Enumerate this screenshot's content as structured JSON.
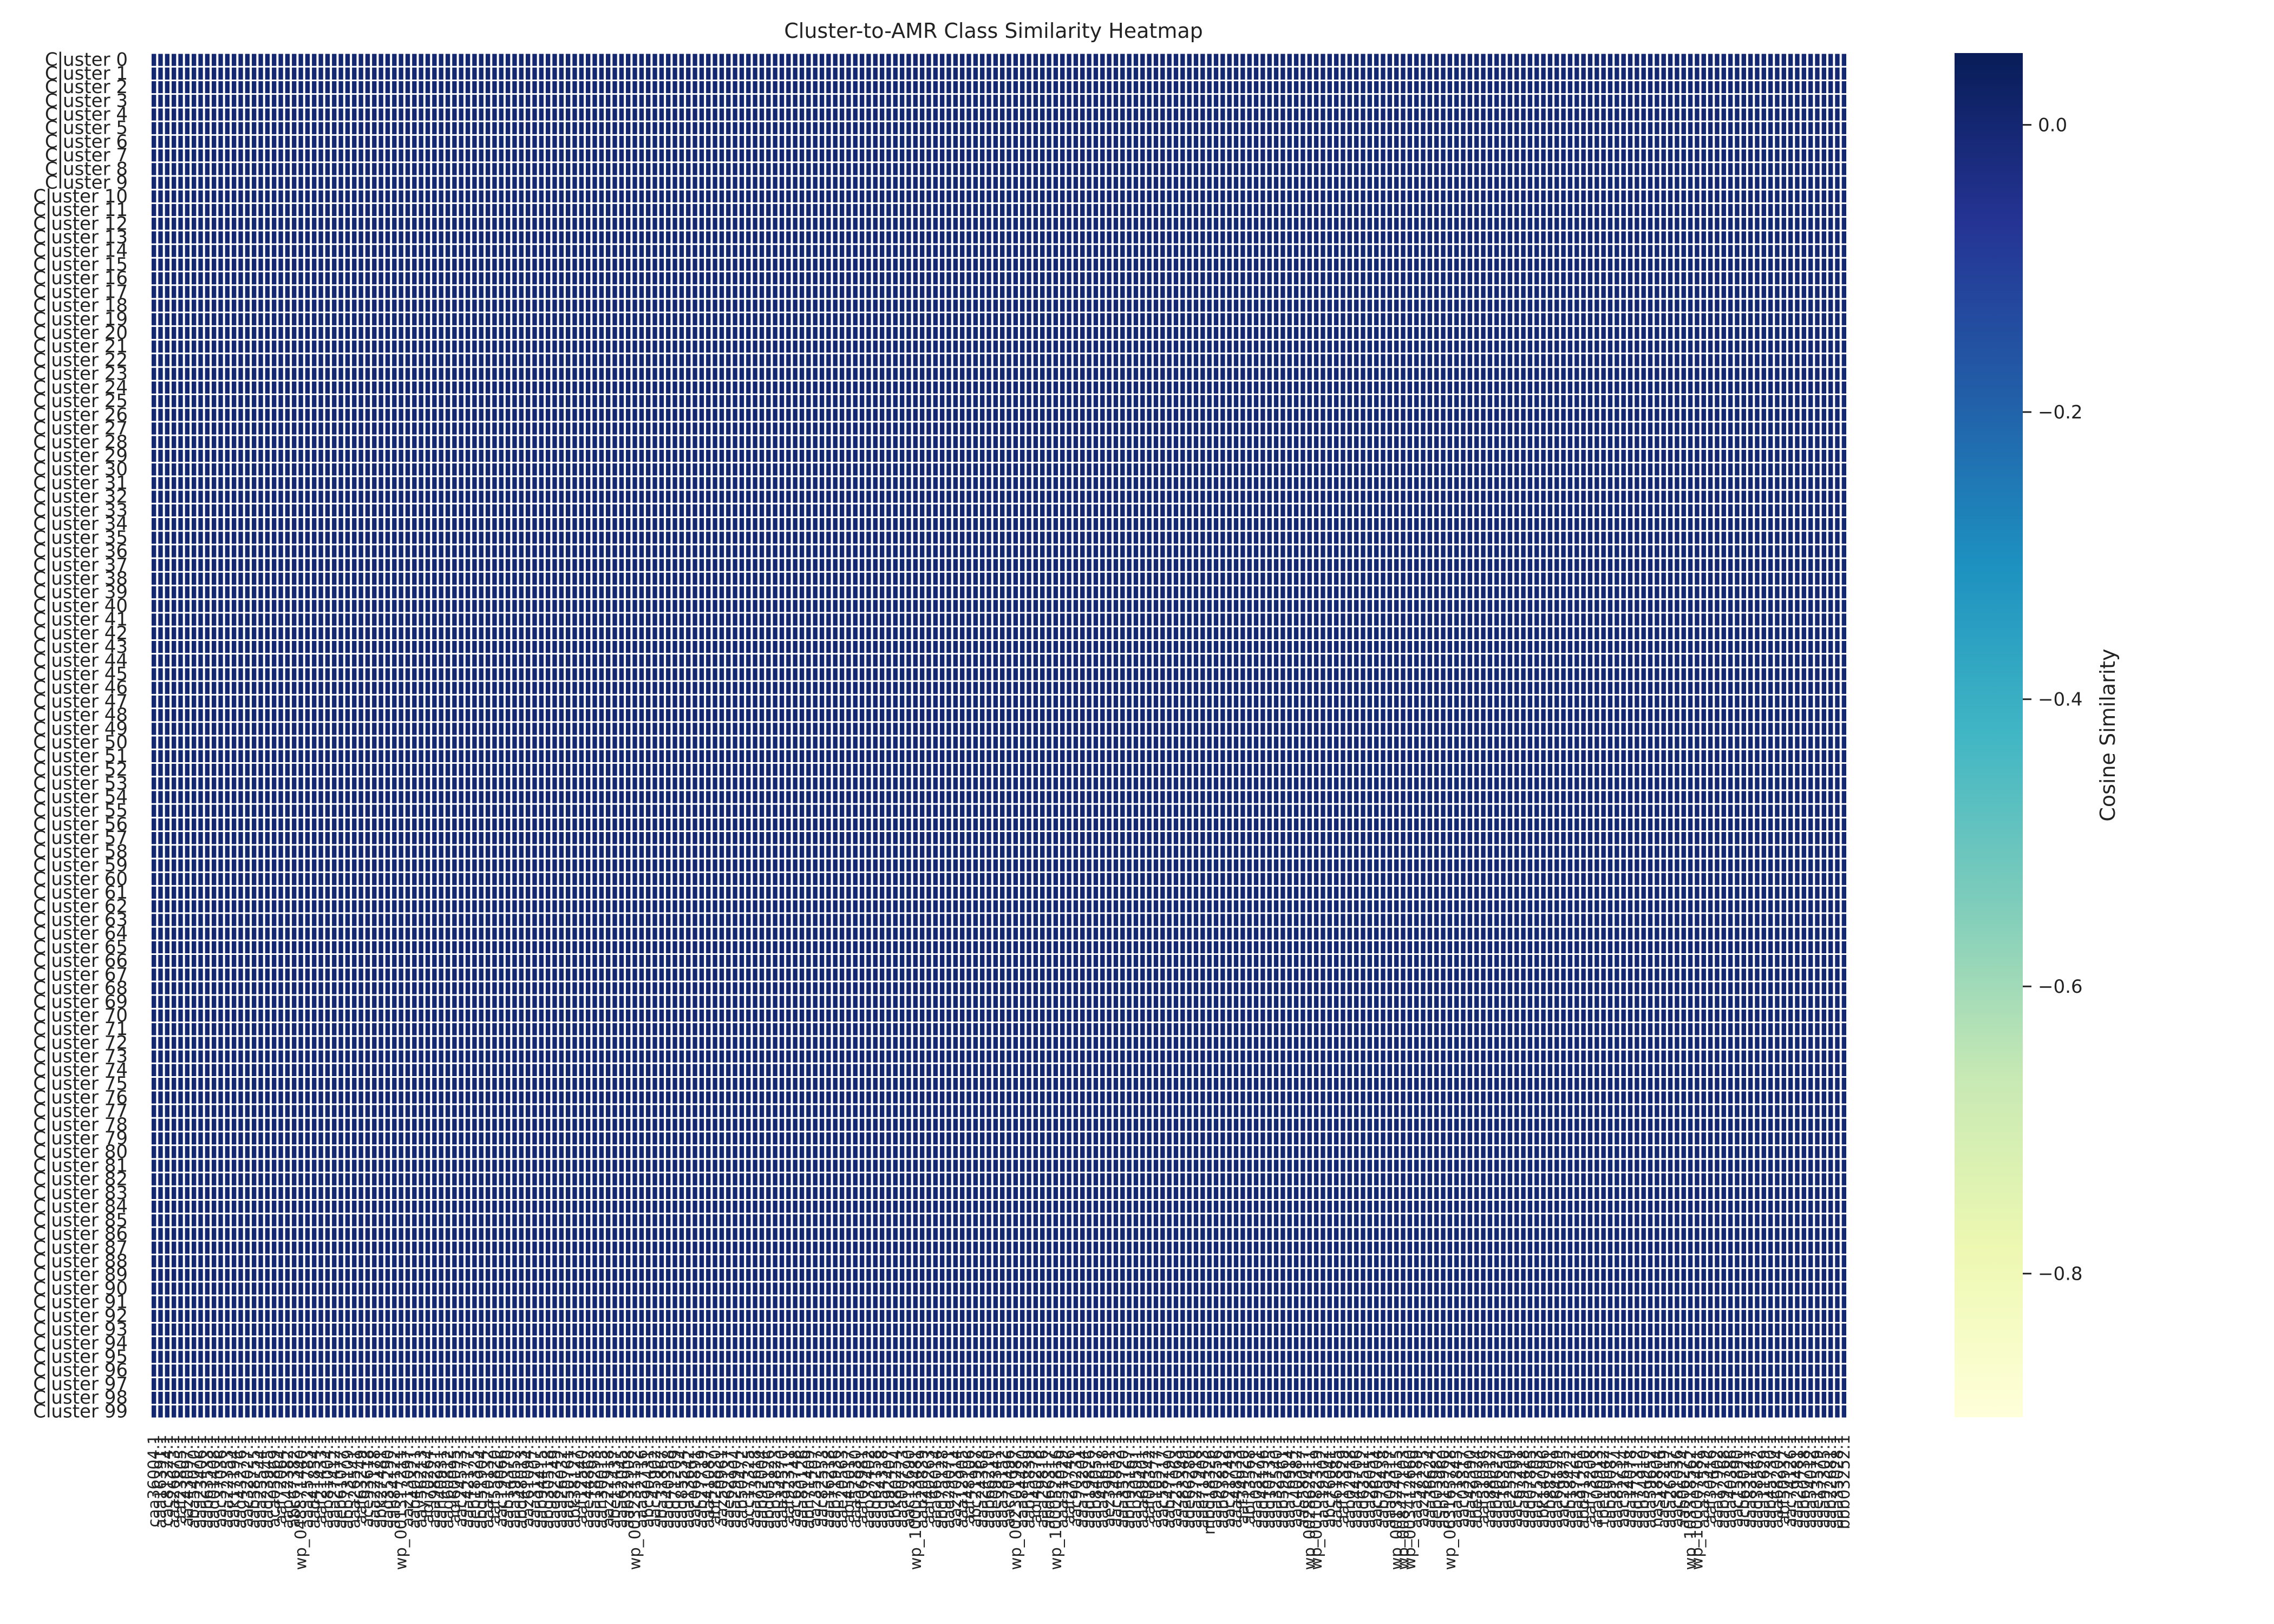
{
  "chart_data": {
    "type": "heatmap",
    "title": "Cluster-to-AMR Class Similarity Heatmap",
    "colorbar": {
      "label": "Cosine Similarity",
      "range": [
        -0.9,
        0.05
      ],
      "ticks": [
        "0.0",
        "−0.2",
        "−0.4",
        "−0.6",
        "−0.8"
      ],
      "tick_values": [
        0.0,
        -0.2,
        -0.4,
        -0.6,
        -0.8
      ],
      "colormap": "YlGnBu",
      "colors": [
        "#ffffd9",
        "#edf8b1",
        "#c7e9b4",
        "#7fcdbb",
        "#41b6c4",
        "#1d91c0",
        "#225ea8",
        "#253494",
        "#081d58"
      ]
    },
    "rows": [
      "Cluster 0",
      "Cluster 1",
      "Cluster 2",
      "Cluster 3",
      "Cluster 4",
      "Cluster 5",
      "Cluster 6",
      "Cluster 7",
      "Cluster 8",
      "Cluster 9",
      "Cluster 10",
      "Cluster 11",
      "Cluster 12",
      "Cluster 13",
      "Cluster 14",
      "Cluster 15",
      "Cluster 16",
      "Cluster 17",
      "Cluster 18",
      "Cluster 19",
      "Cluster 20",
      "Cluster 21",
      "Cluster 22",
      "Cluster 23",
      "Cluster 24",
      "Cluster 25",
      "Cluster 26",
      "Cluster 27",
      "Cluster 28",
      "Cluster 29",
      "Cluster 30",
      "Cluster 31",
      "Cluster 32",
      "Cluster 33",
      "Cluster 34",
      "Cluster 35",
      "Cluster 36",
      "Cluster 37",
      "Cluster 38",
      "Cluster 39",
      "Cluster 40",
      "Cluster 41",
      "Cluster 42",
      "Cluster 43",
      "Cluster 44",
      "Cluster 45",
      "Cluster 46",
      "Cluster 47",
      "Cluster 48",
      "Cluster 49",
      "Cluster 50",
      "Cluster 51",
      "Cluster 52",
      "Cluster 53",
      "Cluster 54",
      "Cluster 55",
      "Cluster 56",
      "Cluster 57",
      "Cluster 58",
      "Cluster 59",
      "Cluster 60",
      "Cluster 61",
      "Cluster 62",
      "Cluster 63",
      "Cluster 64",
      "Cluster 65",
      "Cluster 66",
      "Cluster 67",
      "Cluster 68",
      "Cluster 69",
      "Cluster 70",
      "Cluster 71",
      "Cluster 72",
      "Cluster 73",
      "Cluster 74",
      "Cluster 75",
      "Cluster 76",
      "Cluster 77",
      "Cluster 78",
      "Cluster 79",
      "Cluster 80",
      "Cluster 81",
      "Cluster 82",
      "Cluster 83",
      "Cluster 84",
      "Cluster 85",
      "Cluster 86",
      "Cluster 87",
      "Cluster 88",
      "Cluster 89",
      "Cluster 90",
      "Cluster 91",
      "Cluster 92",
      "Cluster 93",
      "Cluster 94",
      "Cluster 95",
      "Cluster 96",
      "Cluster 97",
      "Cluster 98",
      "Cluster 99"
    ],
    "columns": [
      "caa36004.1",
      "aaa16391.1",
      "cac81324.1",
      "aaa26673.1",
      "aaf23805.1",
      "aaz43097.1",
      "aba54070.1",
      "aaa23406.1",
      "aab63533.1",
      "aad01408.1",
      "aac37036.1",
      "aaa22353.1",
      "aak17194.1",
      "aag43276.1",
      "aac32027.1",
      "aab58755.1",
      "aaa25544.1",
      "aad23945.1",
      "aca05869.1",
      "aaf72064.1",
      "aap42382.1",
      "abc67382.1",
      "wp_048871440.1",
      "aaa25783.1",
      "aad41854.1",
      "aaf21433.1",
      "aab81004.1",
      "aaa27412.1",
      "aeb61077.1",
      "abb73109.1",
      "aaa26541.1",
      "aaf63249.1",
      "ace93618.1",
      "aaa22178.1",
      "abk27481.1",
      "aad35290.1",
      "aab84122.1",
      "wp_001317211.1",
      "aaz13097.1",
      "aab40321.1",
      "aay56213.1",
      "abj70264.1",
      "aaa98221.1",
      "aah40931.1",
      "aag60812.1",
      "abi60095.1",
      "aac24573.1",
      "aaa42177.1",
      "aeb18325.1",
      "abq51904.1",
      "aaa70132.1",
      "aaf55820.1",
      "aac19066.1",
      "aab14370.1",
      "aaa39052.1",
      "abd48013.1",
      "aaz61094.1",
      "aaa31207.1",
      "aab94415.1",
      "abg30518.1",
      "aad82249.1",
      "aaa26032.1",
      "aaa50761.1",
      "abk38127.1",
      "aaf12540.1",
      "aae44862.1",
      "aaa18293.1",
      "aah30015.1",
      "aaz22918.1",
      "abe11437.1",
      "aaa62045.1",
      "aab32908.1",
      "wp_003231152.1",
      "aaa52716.1",
      "abc90431.1",
      "aac45902.1",
      "aba31867.1",
      "aaq40358.1",
      "aad71209.1",
      "aag85534.1",
      "aaa13642.1",
      "aac06891.1",
      "aab27719.1",
      "aaa41087.1",
      "abf28830.1",
      "aaz50961.1",
      "aae62137.1",
      "aaa29904.1",
      "aab50472.1",
      "acc17325.1",
      "aaa73618.1",
      "aab92004.1",
      "abd05126.1",
      "aap15823.1",
      "aaa34570.1",
      "aaf92311.1",
      "aac63748.1",
      "aaa80126.1",
      "abh71409.1",
      "aaz35207.1",
      "aac82553.1",
      "aaa16218.1",
      "aab71936.1",
      "aae20563.1",
      "abj45017.1",
      "aaa57830.1",
      "aaf06981.1",
      "aab37402.1",
      "aaq62158.1",
      "aad54318.1",
      "aaa92407.1",
      "abk80254.1",
      "aaa00773.1",
      "aac12690.1",
      "wp_100013481.1",
      "aab20839.1",
      "aaf40263.1",
      "aaa66014.1",
      "abg75128.1",
      "aad29071.1",
      "aaz70314.1",
      "aaa12905.1",
      "aaf48106.1",
      "abc21987.1",
      "aaa24368.1",
      "aab66210.1",
      "aae09341.1",
      "aaa38152.1",
      "aac70496.1",
      "wp_002301987.1",
      "aaa84420.1",
      "aab15839.1",
      "abl40278.1",
      "aaa29816.1",
      "abd66317.1",
      "wp_100052816.1",
      "aaa51029.1",
      "aaf27746.1",
      "aac90231.1",
      "aaa73204.1",
      "aad19826.1",
      "aab84057.1",
      "aaa45618.1",
      "aez39011.1",
      "aac14802.1",
      "aaa35720.1",
      "abh93167.1",
      "aab30591.1",
      "aaa69401.1",
      "aaf08342.1",
      "aaa10577.1",
      "aac58217.1",
      "aab47190.1",
      "aaz21063.1",
      "aaa83349.1",
      "ade66280.1",
      "aaa27918.1",
      "aae71403.1",
      "mbd18326.1",
      "aaa90256.1",
      "aab63812.1",
      "aac21749.1",
      "aaa48033.1",
      "aaf34920.1",
      "abf13568.1",
      "aaa05271.1",
      "aad48196.1",
      "aaq10735.1",
      "aaa32540.1",
      "aab59261.1",
      "aaa76914.1",
      "aac40382.1",
      "aae58017.1",
      "wp_002862411.1",
      "wp_001082319.1",
      "aaa19302.1",
      "abc76041.1",
      "aaa61885.1",
      "aaf17329.1",
      "aab02918.1",
      "aaa44706.1",
      "aad63512.1",
      "aaa28051.1",
      "aac96204.1",
      "aab75438.1",
      "aaa09317.1",
      "wp_001324015.1",
      "wp_008477103.1",
      "wp_003412660.1",
      "aaa57189.1",
      "aaz48275.1",
      "aaa36624.1",
      "aeb05982.1",
      "aab13960.1",
      "wp_063165728.1",
      "aaa71845.1",
      "aac03317.1",
      "aaa42590.1",
      "abe39024.1",
      "aaf51036.1",
      "aaa88012.1",
      "aab40627.1",
      "aaa16350.1",
      "aae25509.1",
      "aac67291.1",
      "aaa93418.1",
      "aad07865.1",
      "aaa25703.1",
      "abk14096.1",
      "aab88201.1",
      "aaa64129.1",
      "aac29875.1",
      "aab18422.1",
      "aaa37461.1",
      "abd91250.1",
      "aaf73208.1",
      "aaa06913.1",
      "tpe10042.1",
      "aab59087.1",
      "aaa81734.1",
      "aac52614.1",
      "aaa14078.1",
      "aaq77312.1",
      "aab34910.1",
      "aaa59652.1",
      "nas18804.1",
      "aae47219.1",
      "aaa26357.1",
      "aac81036.1",
      "aab06274.1",
      "wp_103318562.1",
      "wp_100007481.1",
      "aaa73529.1",
      "aaf30416.1",
      "aaa17902.1",
      "aab92768.1",
      "aaa40386.1",
      "aac15890.1",
      "acb63021.1",
      "aaa83147.1",
      "aad38562.1",
      "aaa11629.1",
      "aab45730.1",
      "aaa68204.1",
      "abf50937.1",
      "aac74126.1",
      "aaa29481.1",
      "aab60738.1",
      "aaa54012.1",
      "aae13579.1",
      "aaa97305.1",
      "aab22681.1",
      "aaa35028.1",
      "bbb03252.1"
    ],
    "values_note": "uniform",
    "value": 0.0,
    "grid": true
  }
}
